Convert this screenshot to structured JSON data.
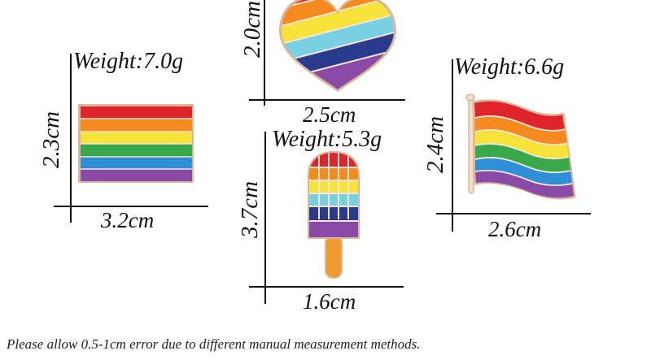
{
  "colors": {
    "red": "#e0242b",
    "orange": "#f58a1f",
    "yellow": "#f7e23a",
    "green": "#38a84a",
    "blue": "#2f8fd6",
    "purple": "#8b4aa8",
    "cyan": "#78d0e2",
    "navy": "#2a3a8c",
    "stick": "#f29a2e",
    "trim": "#d9b79a"
  },
  "products": {
    "rect_flag": {
      "name": "rainbow-rectangle-flag-pin",
      "weight": "Weight:7.0g",
      "width": "3.2cm",
      "height": "2.3cm"
    },
    "heart": {
      "name": "rainbow-heart-pin",
      "width": "2.5cm",
      "height": "2.0cm"
    },
    "popsicle": {
      "name": "rainbow-popsicle-pin",
      "weight": "Weight:5.3g",
      "width": "1.6cm",
      "height": "3.7cm"
    },
    "wavy_flag": {
      "name": "rainbow-wavy-flag-pin",
      "weight": "Weight:6.6g",
      "width": "2.6cm",
      "height": "2.4cm"
    }
  },
  "note": "Please allow 0.5-1cm error due to different manual measurement methods."
}
